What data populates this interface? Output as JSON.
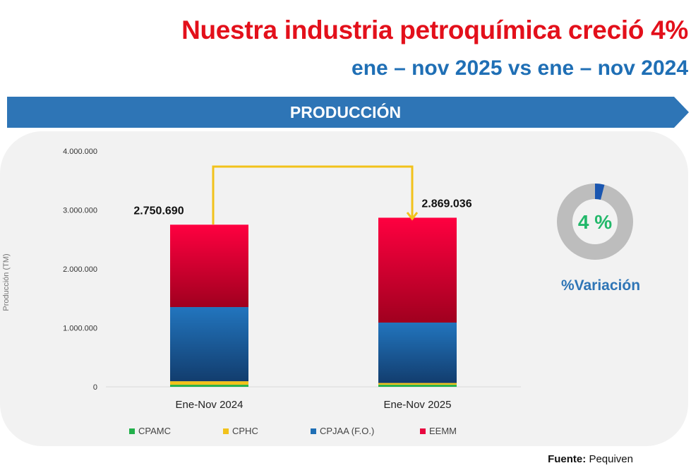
{
  "header": {
    "title": "Nuestra industria petroquímica creció 4%",
    "subtitle": "ene – nov 2025 vs ene – nov 2024",
    "banner": "PRODUCCIÓN"
  },
  "colors": {
    "CPAMC": "#22b04b",
    "CPHC": "#f2c21b",
    "CPJAA": "#1f6fb5",
    "EEMM": "#e8073f",
    "connector": "#f2c21b",
    "donut_fill": "#1a56b0",
    "donut_track": "#bdbdbd",
    "variation_text": "#22b86a",
    "variation_label": "#2e75b6"
  },
  "chart_data": {
    "type": "bar",
    "stacked": true,
    "title": "",
    "xlabel": "",
    "ylabel": "Producción (TM)",
    "ylim": [
      0,
      4000000
    ],
    "yticks": [
      0,
      1000000,
      2000000,
      3000000,
      4000000
    ],
    "ytick_labels": [
      "0",
      "1.000.000",
      "2.000.000",
      "3.000.000",
      "4.000.000"
    ],
    "categories": [
      "Ene-Nov 2024",
      "Ene-Nov 2025"
    ],
    "totals": [
      2750690,
      2869036
    ],
    "total_labels": [
      "2.750.690",
      "2.869.036"
    ],
    "series": [
      {
        "key": "CPAMC",
        "name": "CPAMC",
        "values": [
          35000,
          35000
        ]
      },
      {
        "key": "CPHC",
        "name": "CPHC",
        "values": [
          60000,
          30000
        ]
      },
      {
        "key": "CPJAA",
        "name": "CPJAA (F.O.)",
        "values": [
          1258000,
          1025000
        ]
      },
      {
        "key": "EEMM",
        "name": "EEMM",
        "values": [
          1397690,
          1779036
        ]
      }
    ],
    "legend_position": "bottom",
    "grid": false
  },
  "variation": {
    "value": 4,
    "label_value": "4 %",
    "label": "%Variación"
  },
  "footer": {
    "source_label": "Fuente:",
    "source": "Pequiven"
  }
}
